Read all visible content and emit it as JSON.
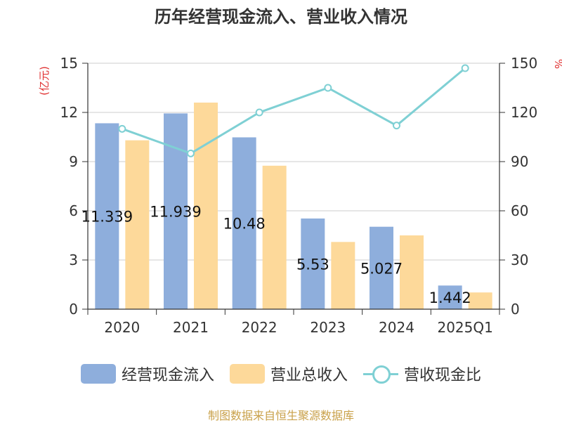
{
  "title": "历年经营现金流入、营业收入情况",
  "footer": "制图数据来自恒生聚源数据库",
  "chart_data": {
    "type": "bar",
    "title": "历年经营现金流入、营业收入情况",
    "categories": [
      "2020",
      "2021",
      "2022",
      "2023",
      "2024",
      "2025Q1"
    ],
    "ylabel_left": "(亿元)",
    "ylabel_right": "%",
    "ylim_left": [
      0,
      15
    ],
    "yticks_left": [
      0,
      3,
      6,
      9,
      12,
      15
    ],
    "ylim_right": [
      0,
      150
    ],
    "yticks_right": [
      0,
      30,
      60,
      90,
      120,
      150
    ],
    "grid": true,
    "legend_position": "bottom",
    "series": [
      {
        "name": "经营现金流入",
        "kind": "bar",
        "axis": "left",
        "color": "#8eaedc",
        "values": [
          11.339,
          11.939,
          10.48,
          5.53,
          5.027,
          1.442
        ],
        "labels": [
          "11.339",
          "11.939",
          "10.48",
          "5.53",
          "5.027",
          "1.442"
        ]
      },
      {
        "name": "营业总收入",
        "kind": "bar",
        "axis": "left",
        "color": "#fdd99a",
        "values": [
          10.3,
          12.6,
          8.75,
          4.1,
          4.5,
          1.02
        ]
      },
      {
        "name": "营收现金比",
        "kind": "line",
        "axis": "right",
        "color": "#7fd0d4",
        "values": [
          110,
          95,
          120,
          135,
          112,
          147
        ]
      }
    ]
  }
}
